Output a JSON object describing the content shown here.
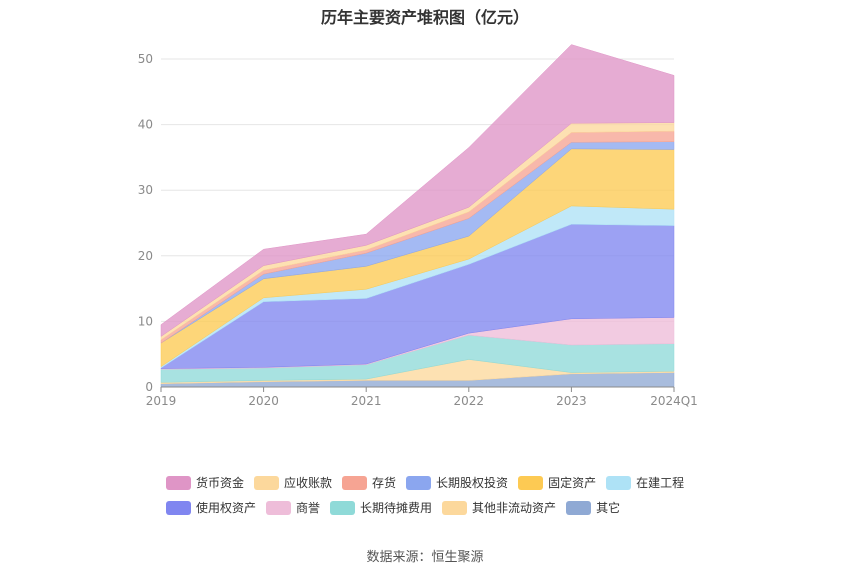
{
  "chart_data": {
    "type": "area",
    "stacked": true,
    "title": "历年主要资产堆积图（亿元）",
    "categories": [
      "2019",
      "2020",
      "2021",
      "2022",
      "2023",
      "2024Q1"
    ],
    "y_ticks": [
      "0",
      "10",
      "20",
      "30",
      "40",
      "50"
    ],
    "ylim": [
      0,
      50
    ],
    "grid": true,
    "legend_position": "bottom",
    "series": [
      {
        "name": "其它",
        "color": "#8fa9d4",
        "values": [
          0.5,
          0.8,
          1.0,
          1.0,
          2.0,
          2.2
        ]
      },
      {
        "name": "其他非流动资产",
        "color": "#fcd89c",
        "values": [
          0.2,
          0.2,
          0.2,
          3.2,
          0.2,
          0.2
        ]
      },
      {
        "name": "长期待摊费用",
        "color": "#8fdad8",
        "values": [
          2.0,
          1.9,
          2.2,
          3.7,
          4.2,
          4.2
        ]
      },
      {
        "name": "商誉",
        "color": "#eebdd9",
        "values": [
          0.1,
          0.1,
          0.1,
          0.3,
          4.0,
          4.0
        ]
      },
      {
        "name": "使用权资产",
        "color": "#8086f0",
        "values": [
          0.1,
          10.0,
          10.0,
          10.5,
          14.4,
          14.0
        ]
      },
      {
        "name": "在建工程",
        "color": "#aee2f6",
        "values": [
          0.2,
          0.6,
          1.4,
          0.8,
          2.8,
          2.5
        ]
      },
      {
        "name": "固定资产",
        "color": "#fdca53",
        "values": [
          3.6,
          2.9,
          3.5,
          3.5,
          8.7,
          9.1
        ]
      },
      {
        "name": "长期股权投资",
        "color": "#8ba6ef",
        "values": [
          0.0,
          0.7,
          2.0,
          2.7,
          1.0,
          1.2
        ]
      },
      {
        "name": "存货",
        "color": "#f6a493",
        "values": [
          0.5,
          0.6,
          0.5,
          1.0,
          1.5,
          1.6
        ]
      },
      {
        "name": "应收账款",
        "color": "#fcd89c",
        "values": [
          0.5,
          0.7,
          0.7,
          0.7,
          1.4,
          1.3
        ]
      },
      {
        "name": "货币资金",
        "color": "#df95c6",
        "values": [
          1.8,
          2.5,
          1.7,
          9.1,
          12.0,
          7.2
        ]
      }
    ]
  },
  "legend_rows": [
    [
      "货币资金",
      "应收账款",
      "存货",
      "长期股权投资",
      "固定资产",
      "在建工程"
    ],
    [
      "使用权资产",
      "商誉",
      "长期待摊费用",
      "其他非流动资产",
      "其它"
    ]
  ],
  "source": "数据来源：恒生聚源"
}
